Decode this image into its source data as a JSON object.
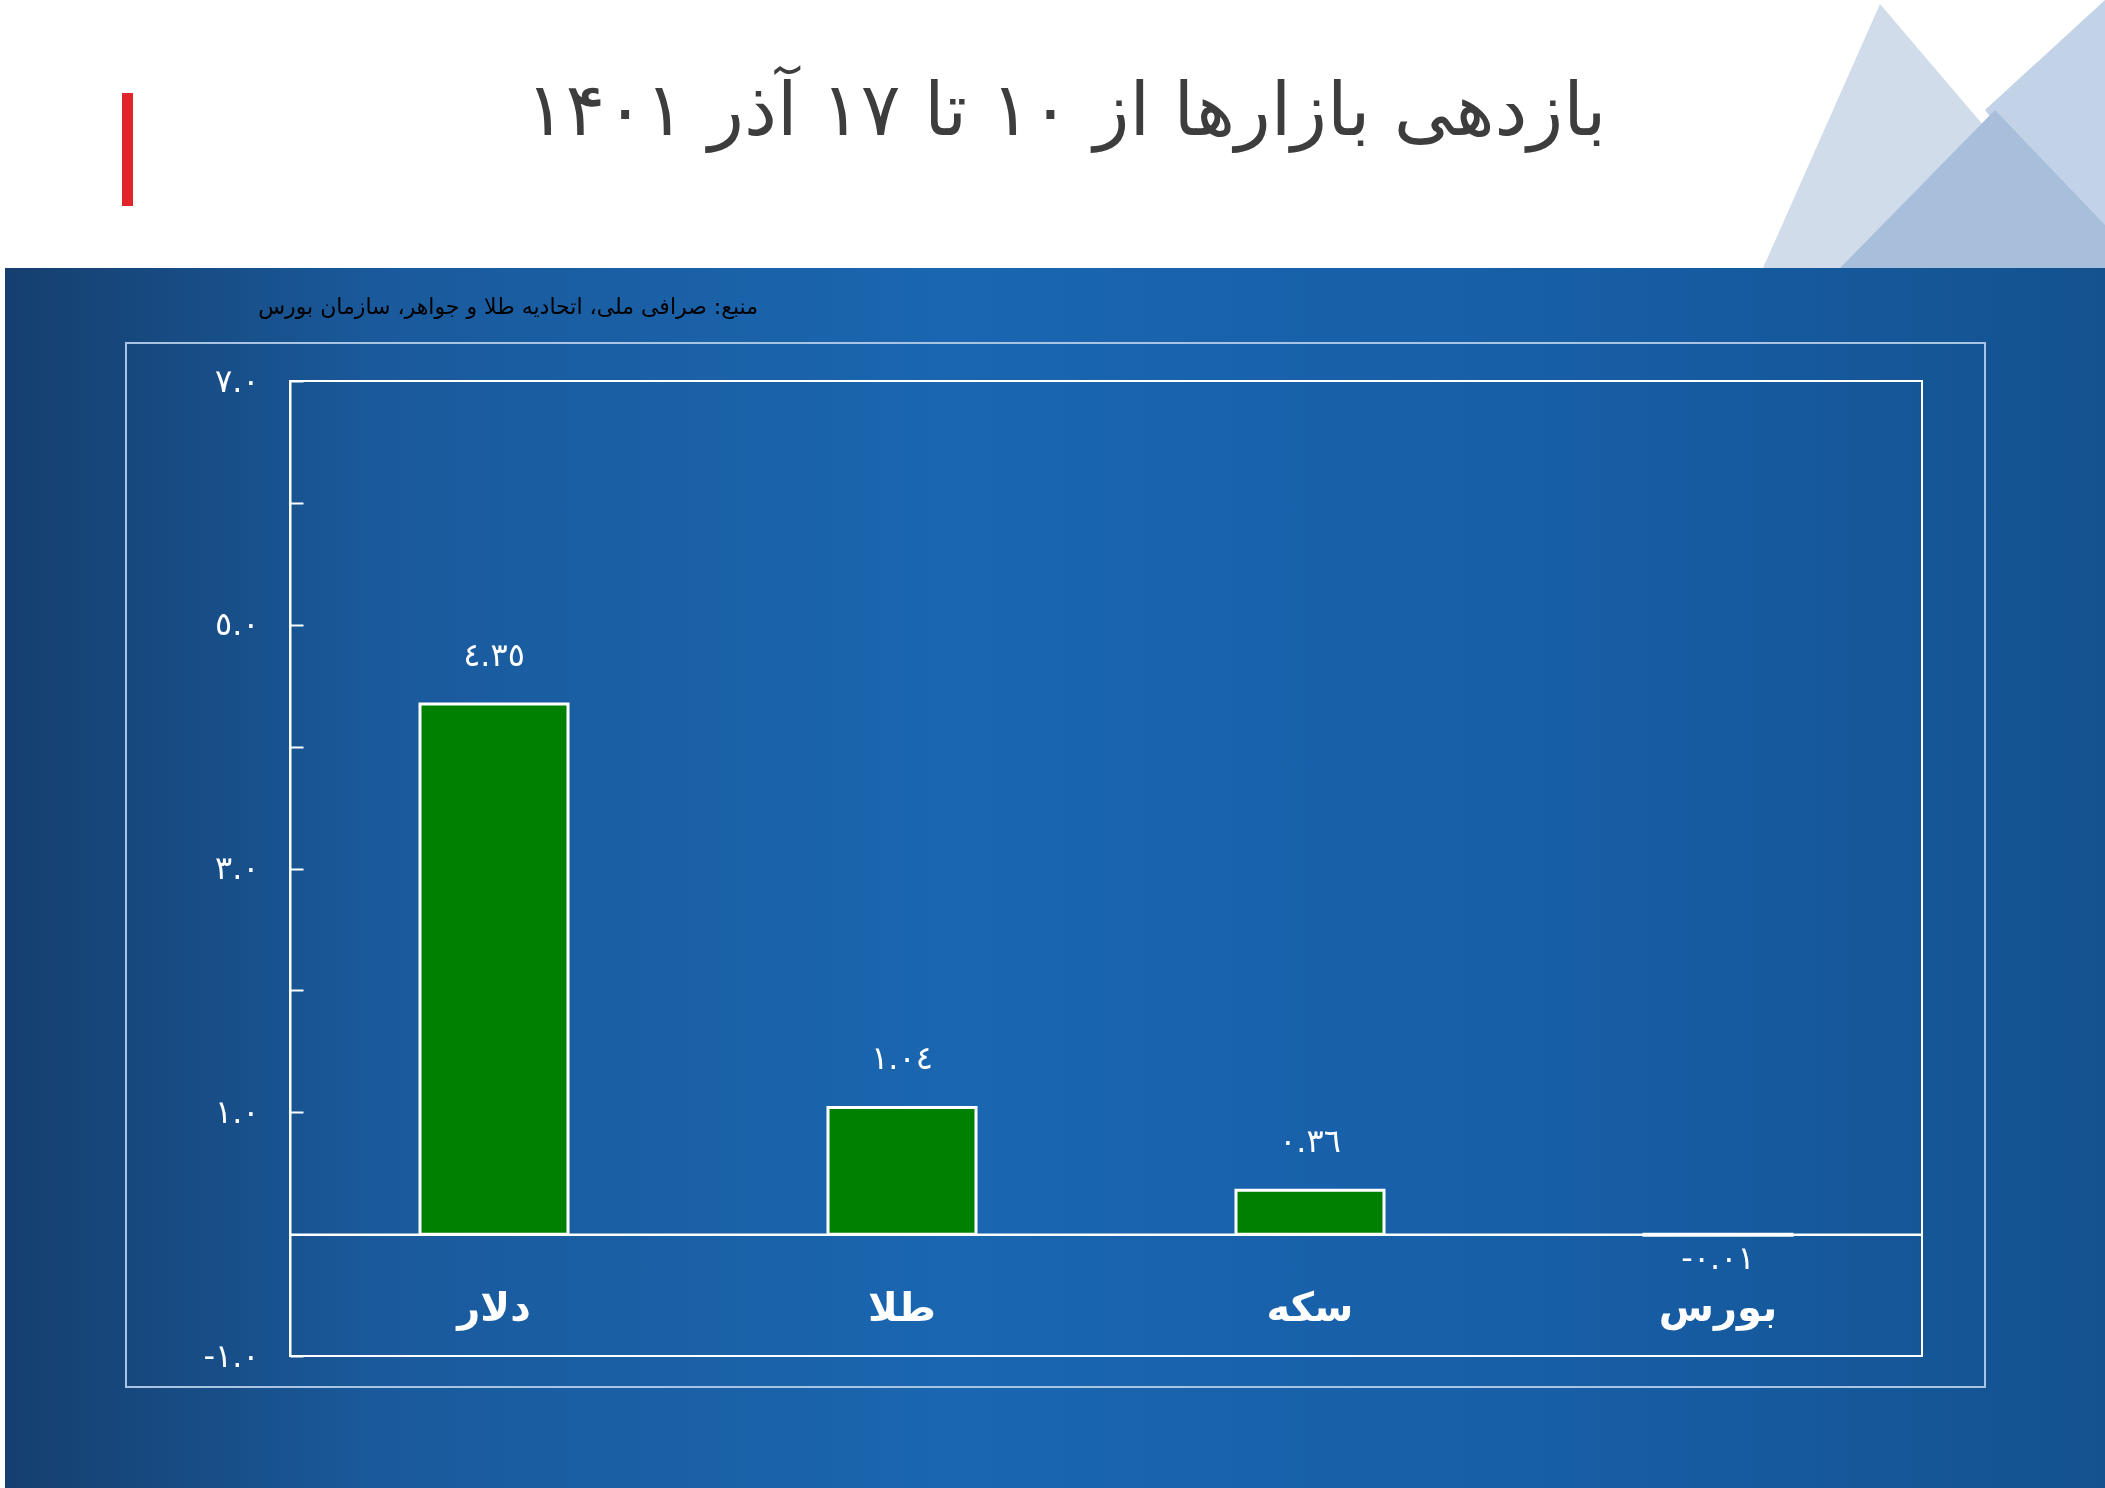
{
  "chart_data": {
    "type": "bar",
    "title": "بازدهی بازارها از ۱۰ تا ۱۷ آذر ۱۴۰۱",
    "annotations": [
      "منبع: صرافی ملی، اتحادیه طلا و جواهر، سازمان بورس"
    ],
    "categories": [
      "دلار",
      "طلا",
      "سکه",
      "بورس"
    ],
    "values": [
      4.35,
      1.04,
      0.36,
      -0.01
    ],
    "value_labels": [
      "٤.٣٥",
      "١.٠٤",
      "٠.٣٦",
      "-٠.٠١"
    ],
    "color": "#008000",
    "ylim": [
      -1,
      7
    ],
    "yticks": [
      {
        "value": -1,
        "label": "-١.٠"
      },
      {
        "value": 1,
        "label": "١.٠"
      },
      {
        "value": 2,
        "label": null
      },
      {
        "value": 3,
        "label": "٣.٠"
      },
      {
        "value": 4,
        "label": null
      },
      {
        "value": 5,
        "label": "٥.٠"
      },
      {
        "value": 6,
        "label": null
      },
      {
        "value": 7,
        "label": "٧.٠"
      }
    ]
  }
}
